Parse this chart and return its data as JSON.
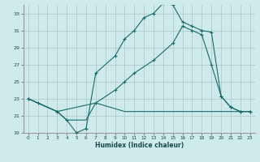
{
  "xlabel": "Humidex (Indice chaleur)",
  "bg_color": "#ceeaea",
  "grid_color": "#b0cccc",
  "line_color": "#1a6b6b",
  "xlim": [
    -0.5,
    23.5
  ],
  "ylim": [
    19,
    34
  ],
  "xticks": [
    0,
    1,
    2,
    3,
    4,
    5,
    6,
    7,
    8,
    9,
    10,
    11,
    12,
    13,
    14,
    15,
    16,
    17,
    18,
    19,
    20,
    21,
    22,
    23
  ],
  "yticks": [
    19,
    21,
    23,
    25,
    27,
    29,
    31,
    33
  ],
  "line1_x": [
    0,
    1,
    3,
    4,
    5,
    6,
    7,
    9,
    10,
    11,
    12,
    13,
    14,
    15,
    16,
    17,
    18,
    19,
    20,
    21,
    22,
    23
  ],
  "line1_y": [
    23,
    22.5,
    21.5,
    20.5,
    19.0,
    19.5,
    26.0,
    28.0,
    30.0,
    31.0,
    32.5,
    33.0,
    34.2,
    34.0,
    32.0,
    31.5,
    31.0,
    30.8,
    23.3,
    22.0,
    21.5,
    21.5
  ],
  "line2_x": [
    0,
    3,
    7,
    9,
    10,
    11,
    13,
    15,
    16,
    17,
    18,
    19,
    20,
    21,
    22,
    23
  ],
  "line2_y": [
    23,
    21.5,
    22.5,
    24.0,
    25.0,
    26.0,
    27.5,
    29.5,
    31.5,
    31.0,
    30.5,
    27.0,
    23.3,
    22.0,
    21.5,
    21.5
  ],
  "line3_x": [
    0,
    3,
    4,
    5,
    6,
    7,
    10,
    15,
    19,
    20,
    22,
    23
  ],
  "line3_y": [
    23,
    21.5,
    20.5,
    20.5,
    20.5,
    22.5,
    21.5,
    21.5,
    21.5,
    21.5,
    21.5,
    21.5
  ]
}
